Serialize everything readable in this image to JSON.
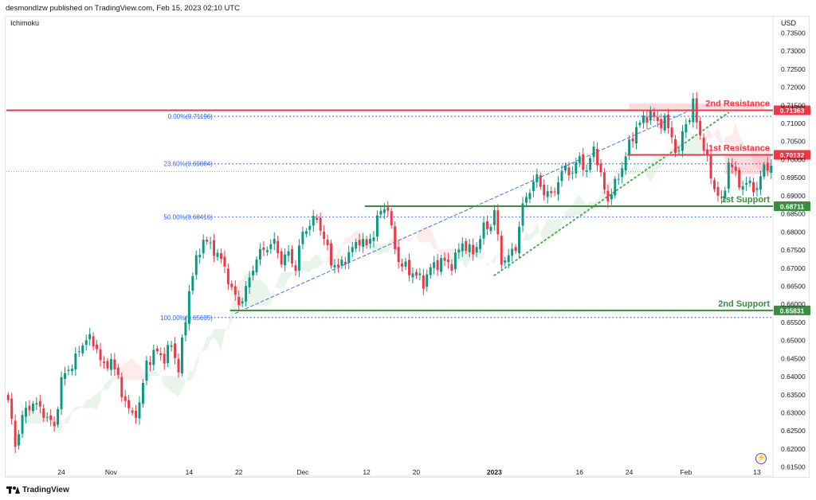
{
  "header": {
    "publisher_line": "desmondlzw published on TradingView.com, Feb 15, 2023 02:10 UTC"
  },
  "indicator_label": "Ichimoku",
  "currency_label": "USD",
  "footer": {
    "brand": "TradingView"
  },
  "colors": {
    "resistance": "#f23645",
    "support": "#388e3c",
    "fib": "#2962ff",
    "trend": "#4caf50",
    "bull": "#089981",
    "bear": "#f23645"
  },
  "chart_data": {
    "type": "candlestick",
    "y_axis": {
      "min": 0.6125,
      "max": 0.7395,
      "ticks": [
        "0.73500",
        "0.73000",
        "0.72500",
        "0.72000",
        "0.71500",
        "0.71000",
        "0.70500",
        "0.70000",
        "0.69500",
        "0.69000",
        "0.68500",
        "0.68000",
        "0.67500",
        "0.67000",
        "0.66500",
        "0.66000",
        "0.65500",
        "0.65000",
        "0.64500",
        "0.64000",
        "0.63500",
        "0.63000",
        "0.62500",
        "0.62000",
        "0.61500"
      ]
    },
    "x_axis": {
      "ticks": [
        {
          "label": "24",
          "bar": 15
        },
        {
          "label": "Nov",
          "bar": 29
        },
        {
          "label": "14",
          "bar": 51
        },
        {
          "label": "22",
          "bar": 65
        },
        {
          "label": "Dec",
          "bar": 83
        },
        {
          "label": "12",
          "bar": 101
        },
        {
          "label": "20",
          "bar": 115
        },
        {
          "label": "2023",
          "bar": 137
        },
        {
          "label": "16",
          "bar": 161
        },
        {
          "label": "24",
          "bar": 175
        },
        {
          "label": "Feb",
          "bar": 191
        },
        {
          "label": "13",
          "bar": 211
        }
      ]
    },
    "bars_total": 216,
    "close_path": [
      [
        0,
        0.6335
      ],
      [
        2,
        0.621
      ],
      [
        4,
        0.629
      ],
      [
        7,
        0.633
      ],
      [
        10,
        0.63
      ],
      [
        13,
        0.626
      ],
      [
        15,
        0.639
      ],
      [
        19,
        0.645
      ],
      [
        22,
        0.651
      ],
      [
        25,
        0.648
      ],
      [
        27,
        0.642
      ],
      [
        29,
        0.645
      ],
      [
        31,
        0.639
      ],
      [
        33,
        0.633
      ],
      [
        35,
        0.629
      ],
      [
        37,
        0.632
      ],
      [
        39,
        0.644
      ],
      [
        42,
        0.647
      ],
      [
        44,
        0.645
      ],
      [
        46,
        0.649
      ],
      [
        48,
        0.642
      ],
      [
        50,
        0.656
      ],
      [
        51,
        0.664
      ],
      [
        53,
        0.672
      ],
      [
        55,
        0.678
      ],
      [
        57,
        0.676
      ],
      [
        59,
        0.674
      ],
      [
        61,
        0.67
      ],
      [
        63,
        0.664
      ],
      [
        65,
        0.66
      ],
      [
        67,
        0.664
      ],
      [
        70,
        0.673
      ],
      [
        73,
        0.676
      ],
      [
        75,
        0.677
      ],
      [
        77,
        0.672
      ],
      [
        79,
        0.674
      ],
      [
        81,
        0.67
      ],
      [
        83,
        0.68
      ],
      [
        85,
        0.682
      ],
      [
        87,
        0.684
      ],
      [
        89,
        0.678
      ],
      [
        91,
        0.672
      ],
      [
        93,
        0.67
      ],
      [
        96,
        0.674
      ],
      [
        99,
        0.678
      ],
      [
        101,
        0.676
      ],
      [
        103,
        0.68
      ],
      [
        105,
        0.686
      ],
      [
        107,
        0.687
      ],
      [
        108,
        0.68
      ],
      [
        110,
        0.672
      ],
      [
        112,
        0.67
      ],
      [
        115,
        0.668
      ],
      [
        117,
        0.666
      ],
      [
        119,
        0.67
      ],
      [
        122,
        0.672
      ],
      [
        125,
        0.671
      ],
      [
        128,
        0.677
      ],
      [
        131,
        0.674
      ],
      [
        134,
        0.681
      ],
      [
        136,
        0.682
      ],
      [
        137,
        0.686
      ],
      [
        138,
        0.678
      ],
      [
        139,
        0.672
      ],
      [
        141,
        0.673
      ],
      [
        143,
        0.676
      ],
      [
        145,
        0.687
      ],
      [
        147,
        0.692
      ],
      [
        149,
        0.695
      ],
      [
        151,
        0.691
      ],
      [
        153,
        0.69
      ],
      [
        155,
        0.694
      ],
      [
        157,
        0.698
      ],
      [
        159,
        0.696
      ],
      [
        161,
        0.701
      ],
      [
        163,
        0.696
      ],
      [
        165,
        0.704
      ],
      [
        167,
        0.695
      ],
      [
        169,
        0.689
      ],
      [
        171,
        0.693
      ],
      [
        173,
        0.698
      ],
      [
        175,
        0.704
      ],
      [
        177,
        0.709
      ],
      [
        179,
        0.711
      ],
      [
        181,
        0.713
      ],
      [
        183,
        0.71
      ],
      [
        185,
        0.711
      ],
      [
        187,
        0.706
      ],
      [
        189,
        0.701
      ],
      [
        190,
        0.708
      ],
      [
        192,
        0.712
      ],
      [
        193,
        0.715
      ],
      [
        194,
        0.711
      ],
      [
        196,
        0.703
      ],
      [
        198,
        0.696
      ],
      [
        199,
        0.692
      ],
      [
        201,
        0.688
      ],
      [
        202,
        0.693
      ],
      [
        203,
        0.699
      ],
      [
        205,
        0.696
      ],
      [
        207,
        0.692
      ],
      [
        209,
        0.694
      ],
      [
        211,
        0.691
      ],
      [
        213,
        0.699
      ],
      [
        215,
        0.697
      ]
    ],
    "horizontal_levels": [
      {
        "name": "2nd Resistance",
        "value": 0.71363,
        "label": "0.71363",
        "kind": "resistance",
        "from_bar": 0
      },
      {
        "name": "1st Resistance",
        "value": 0.70132,
        "label": "0.70132",
        "kind": "resistance",
        "from_bar": 175
      },
      {
        "name": "1st Support",
        "value": 0.68711,
        "label": "0.68711",
        "kind": "support",
        "from_bar": 101
      },
      {
        "name": "2nd Support",
        "value": 0.65831,
        "label": "0.65831",
        "kind": "support",
        "from_bar": 63
      }
    ],
    "fibonacci": [
      {
        "label": "0.00%(0.71196)",
        "value": 0.71196
      },
      {
        "label": "23.60%(0.69884)",
        "value": 0.69884
      },
      {
        "label": "50.00%(0.68416)",
        "value": 0.68416
      },
      {
        "label": "100.00%(0.65635)",
        "value": 0.65635
      }
    ],
    "fib_from_bar": 50,
    "current_price_line": 0.6967,
    "trendlines": [
      {
        "style": "dashed",
        "color": "fib",
        "from": [
          64,
          0.6575
        ],
        "to": [
          193,
          0.714
        ]
      },
      {
        "style": "dotted",
        "color": "trend",
        "from": [
          137,
          0.668
        ],
        "to": [
          203,
          0.713
        ]
      }
    ],
    "zones": [
      {
        "kind": "resistance",
        "from_bar": 175,
        "to_bar": 213,
        "top": 0.7155,
        "bottom": 0.714
      },
      {
        "kind": "resistance",
        "from_bar": 202,
        "to_bar": 215,
        "top": 0.7015,
        "bottom": 0.696
      }
    ]
  }
}
